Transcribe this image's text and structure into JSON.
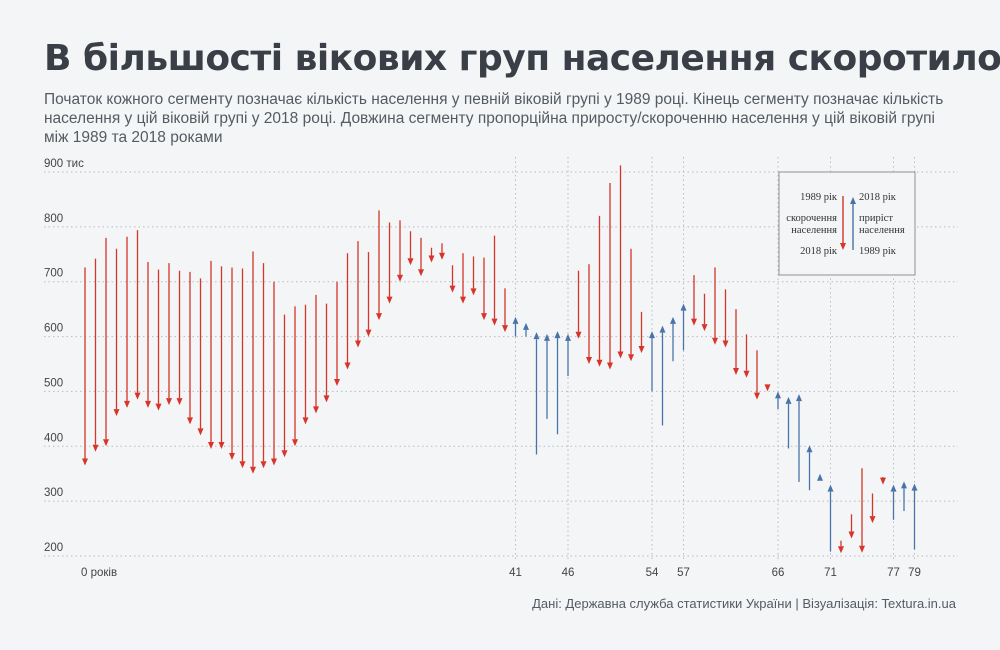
{
  "title": "В більшості вікових груп населення скоротилось",
  "subtitle": "Початок кожного сегменту позначає кількість населення у певній віковій групі у 1989 році. Кінець сегменту позначає кількість населення у цій віковій групі у 2018 році. Довжина сегменту пропорційна приросту/скороченню населення у цій віковій групі між 1989 та 2018 роками",
  "source": "Дані: Державна служба статистики України | Візуалізація: Textura.in.ua",
  "colors": {
    "decline": "#d7342a",
    "growth": "#4a74a8",
    "grid": "#b9bdc2",
    "text": "#444444"
  },
  "legend": {
    "left_top": "1989 рік",
    "left_mid1": "скорочення",
    "left_mid2": "населення",
    "left_bottom": "2018 рік",
    "right_top": "2018 рік",
    "right_mid1": "приріст",
    "right_mid2": "населення",
    "right_bottom": "1989 рік"
  },
  "chart_data": {
    "type": "arrow-segments",
    "x_label_first": "0 років",
    "x_labels": [
      0,
      41,
      46,
      54,
      57,
      66,
      71,
      77,
      79
    ],
    "y_ticks": [
      200,
      300,
      400,
      500,
      600,
      700,
      800,
      900
    ],
    "y_tick_labels": [
      "200",
      "300",
      "400",
      "500",
      "600",
      "700",
      "800",
      "900 тис"
    ],
    "ylim": [
      200,
      900
    ],
    "xlim": [
      0,
      79
    ],
    "x_gridlines": [
      41,
      46,
      54,
      57,
      66,
      71,
      77,
      79
    ],
    "series": [
      {
        "age": 0,
        "y1989": 726,
        "y2018": 365
      },
      {
        "age": 1,
        "y1989": 742,
        "y2018": 390
      },
      {
        "age": 2,
        "y1989": 780,
        "y2018": 400
      },
      {
        "age": 3,
        "y1989": 760,
        "y2018": 455
      },
      {
        "age": 4,
        "y1989": 782,
        "y2018": 470
      },
      {
        "age": 5,
        "y1989": 794,
        "y2018": 485
      },
      {
        "age": 6,
        "y1989": 736,
        "y2018": 470
      },
      {
        "age": 7,
        "y1989": 722,
        "y2018": 465
      },
      {
        "age": 8,
        "y1989": 734,
        "y2018": 475
      },
      {
        "age": 9,
        "y1989": 720,
        "y2018": 475
      },
      {
        "age": 10,
        "y1989": 718,
        "y2018": 440
      },
      {
        "age": 11,
        "y1989": 706,
        "y2018": 420
      },
      {
        "age": 12,
        "y1989": 738,
        "y2018": 395
      },
      {
        "age": 13,
        "y1989": 728,
        "y2018": 395
      },
      {
        "age": 14,
        "y1989": 726,
        "y2018": 375
      },
      {
        "age": 15,
        "y1989": 724,
        "y2018": 360
      },
      {
        "age": 16,
        "y1989": 755,
        "y2018": 350
      },
      {
        "age": 17,
        "y1989": 734,
        "y2018": 360
      },
      {
        "age": 18,
        "y1989": 700,
        "y2018": 365
      },
      {
        "age": 19,
        "y1989": 640,
        "y2018": 380
      },
      {
        "age": 20,
        "y1989": 655,
        "y2018": 400
      },
      {
        "age": 21,
        "y1989": 658,
        "y2018": 440
      },
      {
        "age": 22,
        "y1989": 676,
        "y2018": 460
      },
      {
        "age": 23,
        "y1989": 660,
        "y2018": 480
      },
      {
        "age": 24,
        "y1989": 700,
        "y2018": 510
      },
      {
        "age": 25,
        "y1989": 752,
        "y2018": 540
      },
      {
        "age": 26,
        "y1989": 774,
        "y2018": 580
      },
      {
        "age": 27,
        "y1989": 754,
        "y2018": 600
      },
      {
        "age": 28,
        "y1989": 830,
        "y2018": 630
      },
      {
        "age": 29,
        "y1989": 808,
        "y2018": 660
      },
      {
        "age": 30,
        "y1989": 812,
        "y2018": 700
      },
      {
        "age": 31,
        "y1989": 792,
        "y2018": 730
      },
      {
        "age": 32,
        "y1989": 780,
        "y2018": 710
      },
      {
        "age": 33,
        "y1989": 762,
        "y2018": 735
      },
      {
        "age": 34,
        "y1989": 770,
        "y2018": 740
      },
      {
        "age": 35,
        "y1989": 730,
        "y2018": 680
      },
      {
        "age": 36,
        "y1989": 752,
        "y2018": 660
      },
      {
        "age": 37,
        "y1989": 746,
        "y2018": 675
      },
      {
        "age": 38,
        "y1989": 744,
        "y2018": 630
      },
      {
        "age": 39,
        "y1989": 784,
        "y2018": 620
      },
      {
        "age": 40,
        "y1989": 688,
        "y2018": 608
      },
      {
        "age": 41,
        "y1989": 600,
        "y2018": 636
      },
      {
        "age": 42,
        "y1989": 600,
        "y2018": 625
      },
      {
        "age": 43,
        "y1989": 385,
        "y2018": 608
      },
      {
        "age": 44,
        "y1989": 450,
        "y2018": 605
      },
      {
        "age": 45,
        "y1989": 422,
        "y2018": 610
      },
      {
        "age": 46,
        "y1989": 528,
        "y2018": 605
      },
      {
        "age": 47,
        "y1989": 720,
        "y2018": 596
      },
      {
        "age": 48,
        "y1989": 732,
        "y2018": 550
      },
      {
        "age": 49,
        "y1989": 820,
        "y2018": 545
      },
      {
        "age": 50,
        "y1989": 880,
        "y2018": 540
      },
      {
        "age": 51,
        "y1989": 912,
        "y2018": 560
      },
      {
        "age": 52,
        "y1989": 760,
        "y2018": 555
      },
      {
        "age": 53,
        "y1989": 645,
        "y2018": 570
      },
      {
        "age": 54,
        "y1989": 500,
        "y2018": 610
      },
      {
        "age": 55,
        "y1989": 438,
        "y2018": 620
      },
      {
        "age": 56,
        "y1989": 555,
        "y2018": 636
      },
      {
        "age": 57,
        "y1989": 575,
        "y2018": 660
      },
      {
        "age": 58,
        "y1989": 712,
        "y2018": 620
      },
      {
        "age": 59,
        "y1989": 678,
        "y2018": 610
      },
      {
        "age": 60,
        "y1989": 726,
        "y2018": 585
      },
      {
        "age": 61,
        "y1989": 686,
        "y2018": 580
      },
      {
        "age": 62,
        "y1989": 650,
        "y2018": 530
      },
      {
        "age": 63,
        "y1989": 604,
        "y2018": 525
      },
      {
        "age": 64,
        "y1989": 575,
        "y2018": 485
      },
      {
        "age": 65,
        "y1989": 512,
        "y2018": 500
      },
      {
        "age": 66,
        "y1989": 468,
        "y2018": 500
      },
      {
        "age": 67,
        "y1989": 396,
        "y2018": 490
      },
      {
        "age": 68,
        "y1989": 335,
        "y2018": 495
      },
      {
        "age": 69,
        "y1989": 320,
        "y2018": 402
      },
      {
        "age": 70,
        "y1989": 340,
        "y2018": 350
      },
      {
        "age": 71,
        "y1989": 208,
        "y2018": 330
      },
      {
        "age": 72,
        "y1989": 228,
        "y2018": 205
      },
      {
        "age": 73,
        "y1989": 276,
        "y2018": 232
      },
      {
        "age": 74,
        "y1989": 360,
        "y2018": 206
      },
      {
        "age": 75,
        "y1989": 314,
        "y2018": 260
      },
      {
        "age": 76,
        "y1989": 344,
        "y2018": 330
      },
      {
        "age": 77,
        "y1989": 266,
        "y2018": 330
      },
      {
        "age": 78,
        "y1989": 282,
        "y2018": 336
      },
      {
        "age": 79,
        "y1989": 212,
        "y2018": 332
      }
    ]
  }
}
